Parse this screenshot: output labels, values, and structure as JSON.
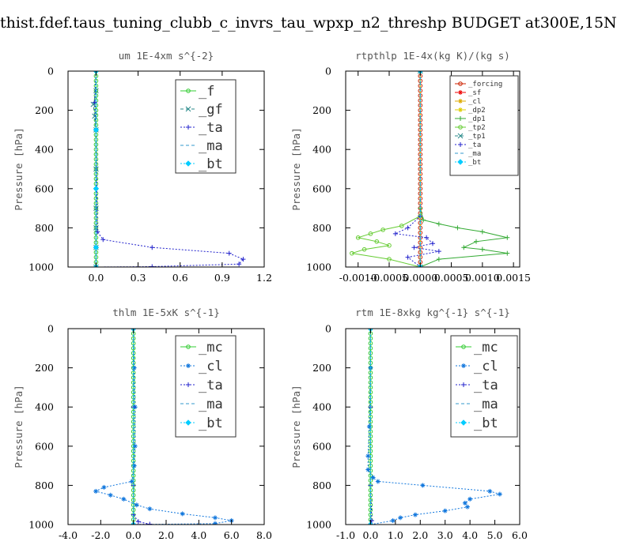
{
  "title": "thist.fdef.taus_tuning_clubb_c_invrs_tau_wpxp_n2_threshp  BUDGET at300E,15N",
  "chart_data": [
    {
      "type": "line",
      "title": "um  1E-4xm s^{-2}",
      "ylabel": "Pressure [hPa]",
      "xlim": [
        -0.2,
        1.2
      ],
      "ylim": [
        1000,
        0
      ],
      "xticks": [
        "0.0",
        "0.3",
        "0.6",
        "0.9",
        "1.2"
      ],
      "xtick_values": [
        0.0,
        0.3,
        0.6,
        0.9,
        1.2
      ],
      "yticks": [
        "0",
        "200",
        "400",
        "600",
        "800",
        "1000"
      ],
      "ytick_values": [
        0,
        200,
        400,
        600,
        800,
        1000
      ],
      "legend_position": "top-right",
      "series": [
        {
          "name": "_f",
          "color": "#33cc33",
          "marker": "circle",
          "style": "solid",
          "x": [
            0,
            0,
            0,
            0,
            0,
            0,
            0,
            0,
            0,
            0,
            0,
            0,
            0,
            0,
            0,
            0,
            0,
            0,
            0,
            0,
            0,
            0,
            0,
            0,
            0,
            0,
            0,
            0,
            0,
            0,
            0,
            0,
            0,
            0,
            0,
            0,
            0,
            0,
            0,
            0,
            0,
            0
          ],
          "y": [
            0,
            25,
            50,
            75,
            100,
            125,
            150,
            175,
            200,
            225,
            250,
            275,
            300,
            325,
            350,
            375,
            400,
            425,
            450,
            475,
            500,
            525,
            550,
            575,
            600,
            625,
            650,
            675,
            700,
            725,
            750,
            775,
            800,
            825,
            850,
            875,
            900,
            925,
            950,
            975,
            1000,
            1000
          ]
        },
        {
          "name": "_gf",
          "color": "#2a8a8a",
          "marker": "x",
          "style": "dash",
          "x": [
            0,
            -0.02,
            -0.01,
            0,
            0,
            0,
            0,
            0,
            0
          ],
          "y": [
            100,
            170,
            230,
            300,
            500,
            700,
            800,
            900,
            1000
          ]
        },
        {
          "name": "_ta",
          "color": "#2222cc",
          "marker": "plus",
          "style": "dot",
          "x": [
            0,
            -0.01,
            0,
            0.01,
            0.05,
            0.4,
            0.95,
            1.05,
            1.02,
            0.4,
            0.0
          ],
          "y": [
            0,
            160,
            300,
            820,
            860,
            900,
            930,
            960,
            985,
            998,
            1000
          ]
        },
        {
          "name": "_ma",
          "color": "#3399cc",
          "marker": "none",
          "style": "dash",
          "x": [
            0,
            0,
            0,
            0,
            0
          ],
          "y": [
            0,
            300,
            600,
            900,
            1000
          ]
        },
        {
          "name": "_bt",
          "color": "#00ccff",
          "marker": "diamond",
          "style": "dot",
          "x": [
            0,
            0,
            0,
            0,
            0
          ],
          "y": [
            0,
            300,
            600,
            900,
            1000
          ]
        }
      ]
    },
    {
      "type": "line",
      "title": "rtpthlp  1E-4x(kg K)/(kg s)",
      "ylabel": "Pressure [hPa]",
      "xlim": [
        -0.0012,
        0.0016
      ],
      "ylim": [
        1000,
        0
      ],
      "xticks": [
        "-0.0010",
        "-0.0005",
        "0.0000",
        "0.0005",
        "0.0010",
        "0.0015"
      ],
      "xtick_values": [
        -0.001,
        -0.0005,
        0.0,
        0.0005,
        0.001,
        0.0015
      ],
      "yticks": [
        "0",
        "200",
        "400",
        "600",
        "800",
        "1000"
      ],
      "ytick_values": [
        0,
        200,
        400,
        600,
        800,
        1000
      ],
      "legend_position": "top-right",
      "series": [
        {
          "name": "_forcing",
          "color": "#cc2200",
          "marker": "circle",
          "style": "solid",
          "x": [
            0,
            0,
            0,
            0,
            0,
            0,
            0,
            0,
            0,
            0,
            0,
            0,
            0,
            0,
            0,
            0,
            0,
            0,
            0,
            0,
            0,
            0,
            0,
            0,
            0,
            0,
            0,
            0,
            0,
            0,
            0,
            0,
            0,
            0,
            0,
            0,
            0,
            0,
            0,
            0,
            0
          ],
          "y": [
            0,
            25,
            50,
            75,
            100,
            125,
            150,
            175,
            200,
            225,
            250,
            275,
            300,
            325,
            350,
            375,
            400,
            425,
            450,
            475,
            500,
            525,
            550,
            575,
            600,
            625,
            650,
            675,
            700,
            725,
            750,
            775,
            800,
            825,
            850,
            875,
            900,
            925,
            950,
            975,
            1000
          ]
        },
        {
          "name": "_sf",
          "color": "#ee0000",
          "marker": "star",
          "style": "solid",
          "x": [
            0,
            0
          ],
          "y": [
            0,
            1000
          ]
        },
        {
          "name": "_cl",
          "color": "#ddaa00",
          "marker": "star",
          "style": "solid",
          "x": [
            0,
            0
          ],
          "y": [
            0,
            1000
          ]
        },
        {
          "name": "_dp2",
          "color": "#ddcc00",
          "marker": "star",
          "style": "solid",
          "x": [
            0,
            0
          ],
          "y": [
            0,
            1000
          ]
        },
        {
          "name": "_dp1",
          "color": "#33aa33",
          "marker": "plus",
          "style": "solid",
          "x": [
            0,
            5e-05,
            0.0003,
            0.0006,
            0.001,
            0.0014,
            0.0009,
            0.0007,
            0.001,
            0.0014,
            0.0003,
            0.0
          ],
          "y": [
            700,
            760,
            780,
            800,
            820,
            850,
            870,
            900,
            910,
            930,
            960,
            1000
          ]
        },
        {
          "name": "_tp2",
          "color": "#66cc33",
          "marker": "circle",
          "style": "solid",
          "x": [
            0,
            -0.0003,
            -0.0006,
            -0.0008,
            -0.001,
            -0.0007,
            -0.0005,
            -0.0009,
            -0.0011,
            -0.0005,
            0.0
          ],
          "y": [
            740,
            790,
            810,
            830,
            850,
            870,
            890,
            910,
            930,
            960,
            1000
          ]
        },
        {
          "name": "_tp1",
          "color": "#2a8a8a",
          "marker": "x",
          "style": "dash",
          "x": [
            0,
            0
          ],
          "y": [
            0,
            1000
          ]
        },
        {
          "name": "_ta",
          "color": "#2222cc",
          "marker": "plus",
          "style": "dot",
          "x": [
            0,
            -0.0002,
            -0.0004,
            0.0001,
            0.0002,
            -0.0001,
            0.0003,
            -0.0002,
            0.0
          ],
          "y": [
            740,
            800,
            830,
            850,
            880,
            900,
            920,
            950,
            1000
          ]
        },
        {
          "name": "_ma",
          "color": "#3399cc",
          "marker": "none",
          "style": "dash",
          "x": [
            0,
            0
          ],
          "y": [
            0,
            1000
          ]
        },
        {
          "name": "_bt",
          "color": "#00ccff",
          "marker": "diamond",
          "style": "dot",
          "x": [
            0,
            0
          ],
          "y": [
            0,
            1000
          ]
        }
      ]
    },
    {
      "type": "line",
      "title": "thlm  1E-5xK s^{-1}",
      "ylabel": "Pressure [hPa]",
      "xlim": [
        -4.0,
        8.0
      ],
      "ylim": [
        1000,
        0
      ],
      "xticks": [
        "-4.0",
        "-2.0",
        "0.0",
        "2.0",
        "4.0",
        "6.0",
        "8.0"
      ],
      "xtick_values": [
        -4.0,
        -2.0,
        0.0,
        2.0,
        4.0,
        6.0,
        8.0
      ],
      "yticks": [
        "0",
        "200",
        "400",
        "600",
        "800",
        "1000"
      ],
      "ytick_values": [
        0,
        200,
        400,
        600,
        800,
        1000
      ],
      "legend_position": "top-right",
      "series": [
        {
          "name": "_mc",
          "color": "#33cc33",
          "marker": "circle",
          "style": "solid",
          "x": [
            0,
            0,
            0,
            0,
            0,
            0,
            0,
            0,
            0,
            0,
            0,
            0,
            0,
            0,
            0,
            0,
            0,
            0,
            0,
            0,
            0,
            0,
            0,
            0,
            0,
            0,
            0,
            0,
            0,
            0,
            0,
            0,
            0,
            0,
            0,
            0,
            0,
            0,
            0,
            0,
            0
          ],
          "y": [
            0,
            25,
            50,
            75,
            100,
            125,
            150,
            175,
            200,
            225,
            250,
            275,
            300,
            325,
            350,
            375,
            400,
            425,
            450,
            475,
            500,
            525,
            550,
            575,
            600,
            625,
            650,
            675,
            700,
            725,
            750,
            775,
            800,
            825,
            850,
            875,
            900,
            925,
            950,
            975,
            1000
          ]
        },
        {
          "name": "_cl",
          "color": "#1177dd",
          "marker": "star",
          "style": "dot",
          "x": [
            0,
            0.05,
            0.1,
            0.1,
            0.05,
            -0.1,
            -1.8,
            -2.3,
            -1.4,
            -0.6,
            0.2,
            1.0,
            3.0,
            5.0,
            6.0,
            5.0,
            0.0
          ],
          "y": [
            0,
            200,
            400,
            600,
            700,
            780,
            810,
            830,
            850,
            870,
            900,
            920,
            945,
            965,
            980,
            995,
            1000
          ]
        },
        {
          "name": "_ta",
          "color": "#2222cc",
          "marker": "plus",
          "style": "dot",
          "x": [
            0,
            0,
            0,
            0,
            0.3,
            1.0,
            0.0
          ],
          "y": [
            0,
            400,
            800,
            950,
            985,
            998,
            1000
          ]
        },
        {
          "name": "_ma",
          "color": "#3399cc",
          "marker": "none",
          "style": "dash",
          "x": [
            0,
            0
          ],
          "y": [
            0,
            1000
          ]
        },
        {
          "name": "_bt",
          "color": "#00ccff",
          "marker": "diamond",
          "style": "dot",
          "x": [
            0,
            0
          ],
          "y": [
            0,
            1000
          ]
        }
      ]
    },
    {
      "type": "line",
      "title": "rtm  1E-8xkg kg^{-1} s^{-1}",
      "ylabel": "Pressure [hPa]",
      "xlim": [
        -1.0,
        6.0
      ],
      "ylim": [
        1000,
        0
      ],
      "xticks": [
        "-1.0",
        "0.0",
        "1.0",
        "2.0",
        "3.0",
        "4.0",
        "5.0",
        "6.0"
      ],
      "xtick_values": [
        -1.0,
        0.0,
        1.0,
        2.0,
        3.0,
        4.0,
        5.0,
        6.0
      ],
      "yticks": [
        "0",
        "200",
        "400",
        "600",
        "800",
        "1000"
      ],
      "ytick_values": [
        0,
        200,
        400,
        600,
        800,
        1000
      ],
      "legend_position": "top-right",
      "series": [
        {
          "name": "_mc",
          "color": "#33cc33",
          "marker": "circle",
          "style": "solid",
          "x": [
            0,
            0,
            0,
            0,
            0,
            0,
            0,
            0,
            0,
            0,
            0,
            0,
            0,
            0,
            0,
            0,
            0,
            0,
            0,
            0,
            0,
            0,
            0,
            0,
            0,
            0,
            0,
            0,
            0,
            0,
            0,
            0,
            0,
            0,
            0,
            0,
            0,
            0,
            0,
            0,
            0
          ],
          "y": [
            0,
            25,
            50,
            75,
            100,
            125,
            150,
            175,
            200,
            225,
            250,
            275,
            300,
            325,
            350,
            375,
            400,
            425,
            450,
            475,
            500,
            525,
            550,
            575,
            600,
            625,
            650,
            675,
            700,
            725,
            750,
            775,
            800,
            825,
            850,
            875,
            900,
            925,
            950,
            975,
            1000
          ]
        },
        {
          "name": "_cl",
          "color": "#1177dd",
          "marker": "star",
          "style": "dot",
          "x": [
            0,
            0.0,
            -0.05,
            -0.1,
            -0.1,
            0.1,
            0.3,
            2.1,
            4.8,
            5.2,
            4.0,
            3.8,
            3.9,
            3.0,
            1.8,
            1.2,
            0.9,
            0.0
          ],
          "y": [
            0,
            200,
            500,
            650,
            720,
            760,
            780,
            800,
            830,
            845,
            870,
            890,
            910,
            930,
            950,
            965,
            980,
            1000
          ]
        },
        {
          "name": "_ta",
          "color": "#2222cc",
          "marker": "plus",
          "style": "dot",
          "x": [
            0,
            0,
            0,
            0.05,
            0.0
          ],
          "y": [
            0,
            400,
            800,
            980,
            1000
          ]
        },
        {
          "name": "_ma",
          "color": "#3399cc",
          "marker": "none",
          "style": "dash",
          "x": [
            0,
            0
          ],
          "y": [
            0,
            1000
          ]
        },
        {
          "name": "_bt",
          "color": "#00ccff",
          "marker": "diamond",
          "style": "dot",
          "x": [
            0,
            0
          ],
          "y": [
            0,
            1000
          ]
        }
      ]
    }
  ]
}
